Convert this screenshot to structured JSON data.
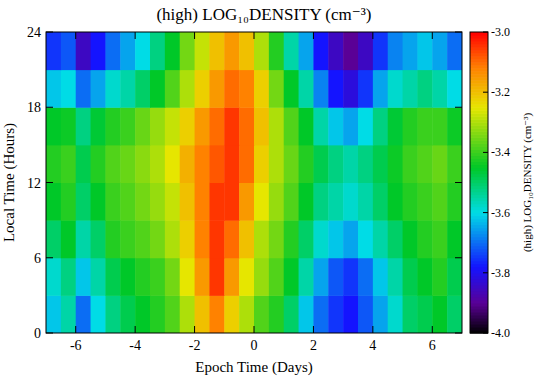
{
  "chart_data": {
    "type": "heatmap",
    "title": "(high) LOG₁₀DENSITY (cm⁻³)",
    "x_label": "Epoch Time (Days)",
    "y_label": "Local Time (Hours)",
    "colorbar_label": "(high) LOG₁₀DENSITY (cm⁻³)",
    "xlim": [
      -7,
      7
    ],
    "ylim": [
      0,
      24
    ],
    "xticks": [
      -6,
      -4,
      -2,
      0,
      2,
      4,
      6
    ],
    "yticks": [
      0,
      6,
      12,
      18,
      24
    ],
    "colorbar_lim": [
      -4,
      -3
    ],
    "colorbar_ticks": [
      {
        "value": -4,
        "label": "-4.0"
      },
      {
        "value": -3.8,
        "label": "-3.8"
      },
      {
        "value": -3.6,
        "label": "-3.6"
      },
      {
        "value": -3.4,
        "label": "-3.4"
      },
      {
        "value": -3.2,
        "label": "-3.2"
      },
      {
        "value": -3,
        "label": "-3.0"
      }
    ],
    "x": [
      -6.75,
      -6.25,
      -5.75,
      -5.25,
      -4.75,
      -4.25,
      -3.75,
      -3.25,
      -2.75,
      -2.25,
      -1.75,
      -1.25,
      -0.75,
      -0.25,
      0.25,
      0.75,
      1.25,
      1.75,
      2.25,
      2.75,
      3.25,
      3.75,
      4.25,
      4.75,
      5.25,
      5.75,
      6.25,
      6.75
    ],
    "y": [
      1.5,
      4.5,
      7.5,
      10.5,
      13.5,
      16.5,
      19.5,
      22.5
    ],
    "z": [
      [
        -3.62,
        -3.55,
        -3.7,
        -3.6,
        -3.52,
        -3.48,
        -3.45,
        -3.42,
        -3.38,
        -3.3,
        -3.2,
        -3.12,
        -3.22,
        -3.3,
        -3.38,
        -3.42,
        -3.5,
        -3.62,
        -3.7,
        -3.75,
        -3.78,
        -3.72,
        -3.65,
        -3.58,
        -3.5,
        -3.48,
        -3.45,
        -3.5
      ],
      [
        -3.58,
        -3.52,
        -3.62,
        -3.55,
        -3.48,
        -3.45,
        -3.42,
        -3.4,
        -3.35,
        -3.25,
        -3.15,
        -3.05,
        -3.15,
        -3.25,
        -3.32,
        -3.38,
        -3.45,
        -3.55,
        -3.65,
        -3.72,
        -3.75,
        -3.7,
        -3.62,
        -3.55,
        -3.48,
        -3.45,
        -3.42,
        -3.48
      ],
      [
        -3.5,
        -3.45,
        -3.55,
        -3.5,
        -3.42,
        -3.4,
        -3.38,
        -3.35,
        -3.3,
        -3.22,
        -3.12,
        -3.05,
        -3.1,
        -3.2,
        -3.3,
        -3.35,
        -3.42,
        -3.5,
        -3.58,
        -3.62,
        -3.65,
        -3.6,
        -3.55,
        -3.5,
        -3.45,
        -3.42,
        -3.4,
        -3.45
      ],
      [
        -3.45,
        -3.42,
        -3.5,
        -3.45,
        -3.4,
        -3.38,
        -3.35,
        -3.32,
        -3.28,
        -3.2,
        -3.12,
        -3.05,
        -3.05,
        -3.15,
        -3.25,
        -3.32,
        -3.38,
        -3.45,
        -3.52,
        -3.55,
        -3.58,
        -3.55,
        -3.5,
        -3.45,
        -3.42,
        -3.4,
        -3.38,
        -3.42
      ],
      [
        -3.42,
        -3.4,
        -3.48,
        -3.42,
        -3.38,
        -3.36,
        -3.33,
        -3.3,
        -3.25,
        -3.18,
        -3.12,
        -3.08,
        -3.05,
        -3.1,
        -3.22,
        -3.3,
        -3.36,
        -3.42,
        -3.48,
        -3.52,
        -3.55,
        -3.52,
        -3.48,
        -3.44,
        -3.4,
        -3.38,
        -3.36,
        -3.4
      ],
      [
        -3.45,
        -3.44,
        -3.52,
        -3.46,
        -3.42,
        -3.4,
        -3.36,
        -3.32,
        -3.28,
        -3.22,
        -3.15,
        -3.1,
        -3.05,
        -3.1,
        -3.2,
        -3.3,
        -3.38,
        -3.45,
        -3.55,
        -3.62,
        -3.65,
        -3.6,
        -3.52,
        -3.46,
        -3.42,
        -3.4,
        -3.4,
        -3.44
      ],
      [
        -3.62,
        -3.6,
        -3.7,
        -3.65,
        -3.58,
        -3.55,
        -3.5,
        -3.45,
        -3.38,
        -3.3,
        -3.22,
        -3.15,
        -3.1,
        -3.12,
        -3.22,
        -3.35,
        -3.45,
        -3.55,
        -3.68,
        -3.78,
        -3.82,
        -3.75,
        -3.65,
        -3.58,
        -3.55,
        -3.52,
        -3.55,
        -3.6
      ],
      [
        -3.75,
        -3.72,
        -3.85,
        -3.78,
        -3.7,
        -3.65,
        -3.6,
        -3.52,
        -3.45,
        -3.35,
        -3.28,
        -3.2,
        -3.15,
        -3.2,
        -3.3,
        -3.42,
        -3.55,
        -3.65,
        -3.78,
        -3.85,
        -3.9,
        -3.85,
        -3.75,
        -3.68,
        -3.65,
        -3.62,
        -3.65,
        -3.7
      ]
    ]
  }
}
